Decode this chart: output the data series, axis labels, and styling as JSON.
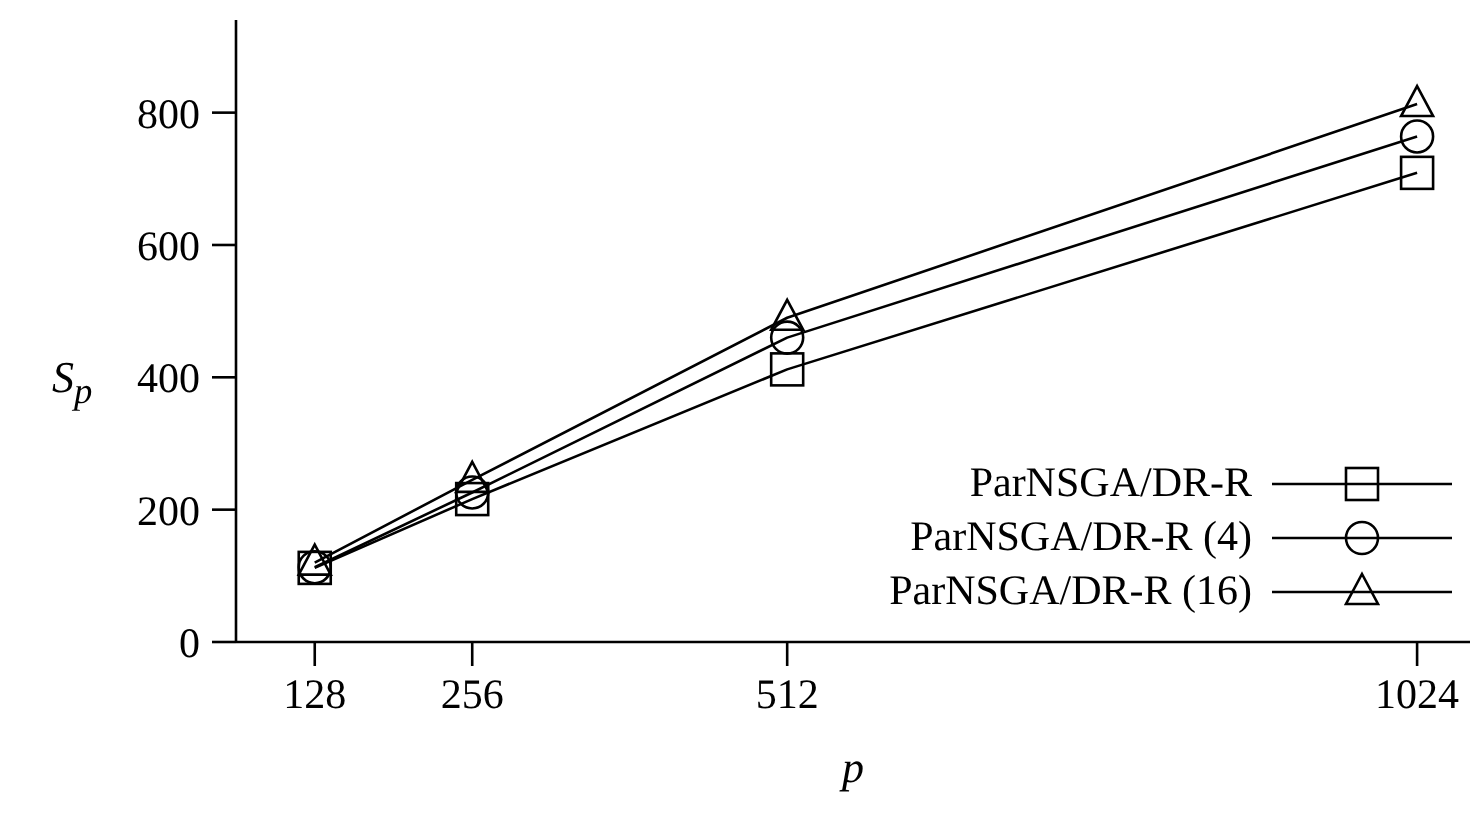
{
  "chart_data": {
    "type": "line",
    "xlabel": "p",
    "ylabel": "S$_{p}$",
    "xlim": [
      64,
      1067
    ],
    "xticks": [
      128,
      256,
      512,
      1024
    ],
    "ylim": [
      0,
      940
    ],
    "yticks": [
      0,
      200,
      400,
      600,
      800
    ],
    "grid": false,
    "legend": "bottom right",
    "line_style": "solid",
    "x": [
      128,
      256,
      512,
      1024
    ],
    "series": [
      {
        "name": "ParNSGA/DR-R",
        "color": "#000000",
        "marker": "square",
        "values": [
          112,
          216,
          412,
          709
        ]
      },
      {
        "name": "ParNSGA/DR-R (4)",
        "color": "#000000",
        "marker": "circle",
        "values": [
          113,
          226,
          460,
          764
        ]
      },
      {
        "name": "ParNSGA/DR-R (16)",
        "color": "#000000",
        "marker": "triangle",
        "values": [
          120,
          245,
          490,
          813
        ]
      }
    ]
  }
}
